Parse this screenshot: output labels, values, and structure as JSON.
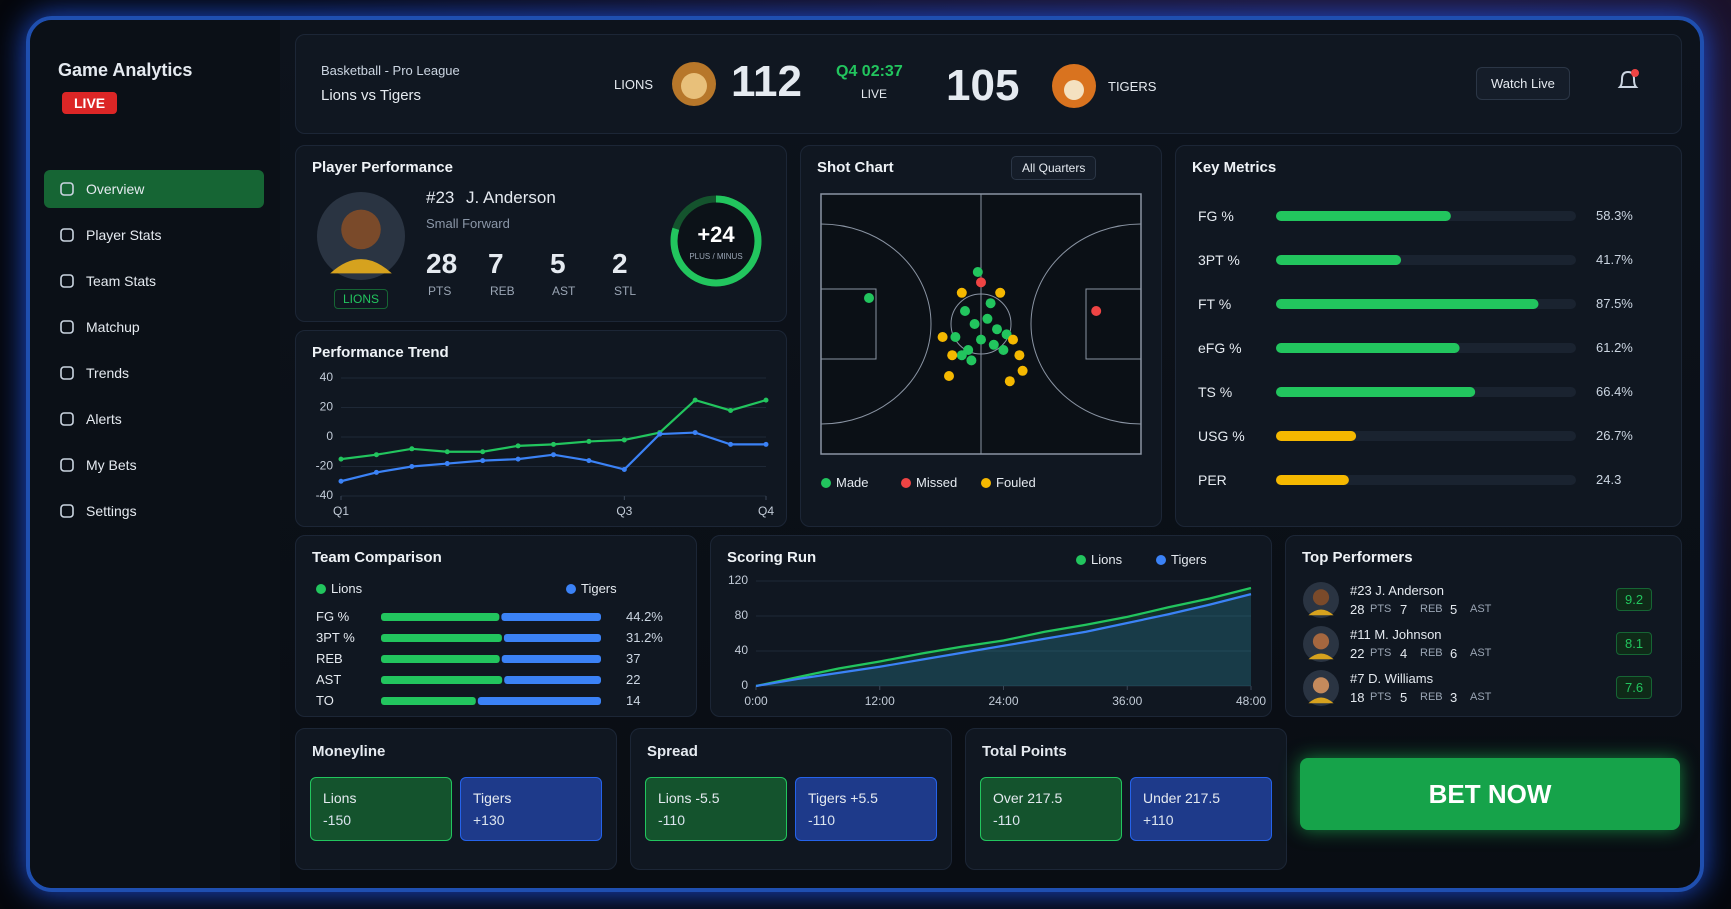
{
  "sidebar": {
    "title": "Game Analytics",
    "badge": "LIVE",
    "menu": [
      "Overview",
      "Player Stats",
      "Team Stats",
      "Matchup",
      "Trends",
      "Alerts",
      "My Bets",
      "Settings"
    ],
    "active": 0
  },
  "header": {
    "league": "Basketball - Pro League",
    "matchup": "Lions vs Tigers",
    "home_team": "LIONS",
    "home_score": 112,
    "clock": "Q4 02:37",
    "status": "LIVE",
    "away_score": 105,
    "away_team": "TIGERS",
    "watch": "Watch Live"
  },
  "player": {
    "title": "Player Performance",
    "number": "#23",
    "name": "J. Anderson",
    "position": "Small Forward",
    "team": "LIONS",
    "stats": [
      {
        "value": 28,
        "label": "PTS"
      },
      {
        "value": 7,
        "label": "REB"
      },
      {
        "value": 5,
        "label": "AST"
      },
      {
        "value": 2,
        "label": "STL"
      }
    ],
    "plus_minus": "+24",
    "plus_minus_label": "PLUS / MINUS"
  },
  "performance_trend": {
    "type": "line",
    "title": "Performance Trend",
    "x": [
      0,
      1,
      2,
      3,
      4,
      5,
      6,
      7,
      8,
      9,
      10,
      11,
      12
    ],
    "xlim": [
      0,
      12
    ],
    "xticks": [
      {
        "value": 0,
        "label": "Q1"
      },
      {
        "value": 8,
        "label": "Q3"
      },
      {
        "value": 12,
        "label": "Q4"
      }
    ],
    "ylim": [
      -40,
      40
    ],
    "yticks": [
      -40,
      -20,
      0,
      20,
      40
    ],
    "series": [
      {
        "color": "#22c55e",
        "values": [
          -15,
          -12,
          -8,
          -10,
          -10,
          -6,
          -5,
          -3,
          -2,
          3,
          25,
          18,
          25
        ]
      },
      {
        "color": "#3b82f6",
        "values": [
          -30,
          -24,
          -20,
          -18,
          -16,
          -15,
          -12,
          -16,
          -22,
          2,
          3,
          -5,
          -5
        ]
      }
    ]
  },
  "shot_chart": {
    "type": "scatter",
    "title": "Shot Chart",
    "filter": "All Quarters",
    "xlim": [
      0,
      100
    ],
    "ylim": [
      0,
      100
    ],
    "series": [
      {
        "name": "Made",
        "color": "#22c55e",
        "x": [
          45,
          48,
          52,
          55,
          42,
          58,
          46,
          50,
          54,
          44,
          57,
          49,
          53,
          47,
          15
        ],
        "y": [
          55,
          50,
          52,
          48,
          45,
          46,
          40,
          44,
          42,
          38,
          40,
          70,
          58,
          36,
          60
        ]
      },
      {
        "name": "Missed",
        "color": "#ef4444",
        "x": [
          86,
          50
        ],
        "y": [
          55,
          66
        ]
      },
      {
        "name": "Fouled",
        "color": "#f5b800",
        "x": [
          38,
          41,
          60,
          62,
          40,
          63,
          59,
          44,
          56
        ],
        "y": [
          45,
          38,
          44,
          38,
          30,
          32,
          28,
          62,
          62
        ]
      }
    ]
  },
  "key_metrics": {
    "type": "bar",
    "title": "Key Metrics",
    "categories": [
      "FG %",
      "3PT %",
      "FT %",
      "eFG %",
      "TS %",
      "USG %",
      "PER"
    ],
    "values": [
      58.3,
      41.7,
      87.5,
      61.2,
      66.4,
      26.7,
      24.3
    ],
    "value_labels": [
      "58.3%",
      "41.7%",
      "87.5%",
      "61.2%",
      "66.4%",
      "26.7%",
      "24.3"
    ],
    "colors": [
      "#22c55e",
      "#22c55e",
      "#22c55e",
      "#22c55e",
      "#22c55e",
      "#f5b800",
      "#f5b800"
    ],
    "xlim": [
      0,
      100
    ]
  },
  "team_comparison": {
    "type": "bar",
    "title": "Team Comparison",
    "categories": [
      "FG %",
      "3PT %",
      "REB",
      "AST",
      "TO"
    ],
    "series": [
      {
        "name": "Lions",
        "color": "#22c55e",
        "values": [
          53.4,
          39.5,
          45,
          28,
          11
        ]
      },
      {
        "name": "Tigers",
        "color": "#3b82f6",
        "values": [
          44.2,
          31.2,
          37,
          22,
          14
        ],
        "value_labels": [
          "44.2%",
          "31.2%",
          "37",
          "22",
          "14"
        ]
      }
    ]
  },
  "scoring_run": {
    "type": "line",
    "title": "Scoring Run",
    "x": [
      0,
      4,
      8,
      12,
      16,
      20,
      24,
      28,
      32,
      36,
      40,
      44,
      48
    ],
    "xlim": [
      0,
      48
    ],
    "xticks": [
      {
        "value": 0,
        "label": "0:00"
      },
      {
        "value": 12,
        "label": "12:00"
      },
      {
        "value": 24,
        "label": "24:00"
      },
      {
        "value": 36,
        "label": "36:00"
      },
      {
        "value": 48,
        "label": "48:00"
      }
    ],
    "ylim": [
      0,
      120
    ],
    "yticks": [
      0,
      40,
      80,
      120
    ],
    "series": [
      {
        "name": "Lions",
        "color": "#22c55e",
        "values": [
          0,
          10,
          20,
          28,
          37,
          45,
          52,
          62,
          70,
          79,
          90,
          100,
          112
        ]
      },
      {
        "name": "Tigers",
        "color": "#3b82f6",
        "values": [
          0,
          8,
          15,
          22,
          30,
          38,
          46,
          54,
          62,
          72,
          82,
          93,
          105
        ]
      }
    ]
  },
  "top_performers": {
    "title": "Top Performers",
    "players": [
      {
        "name": "#23 J. Anderson",
        "stats": [
          {
            "value": 28,
            "label": "PTS"
          },
          {
            "value": 7,
            "label": "REB"
          },
          {
            "value": 5,
            "label": "AST"
          }
        ],
        "rating": "9.2"
      },
      {
        "name": "#11 M. Johnson",
        "stats": [
          {
            "value": 22,
            "label": "PTS"
          },
          {
            "value": 4,
            "label": "REB"
          },
          {
            "value": 6,
            "label": "AST"
          }
        ],
        "rating": "8.1"
      },
      {
        "name": "#7 D. Williams",
        "stats": [
          {
            "value": 18,
            "label": "PTS"
          },
          {
            "value": 5,
            "label": "REB"
          },
          {
            "value": 3,
            "label": "AST"
          }
        ],
        "rating": "7.6"
      }
    ]
  },
  "betting": {
    "markets": [
      {
        "title": "Moneyline",
        "options": [
          {
            "label": "Lions",
            "odds": "-150"
          },
          {
            "label": "Tigers",
            "odds": "+130"
          }
        ]
      },
      {
        "title": "Spread",
        "options": [
          {
            "label": "Lions -5.5",
            "odds": "-110"
          },
          {
            "label": "Tigers +5.5",
            "odds": "-110"
          }
        ]
      },
      {
        "title": "Total Points",
        "options": [
          {
            "label": "Over 217.5",
            "odds": "-110"
          },
          {
            "label": "Under 217.5",
            "odds": "+110"
          }
        ]
      }
    ],
    "cta": "BET NOW"
  }
}
